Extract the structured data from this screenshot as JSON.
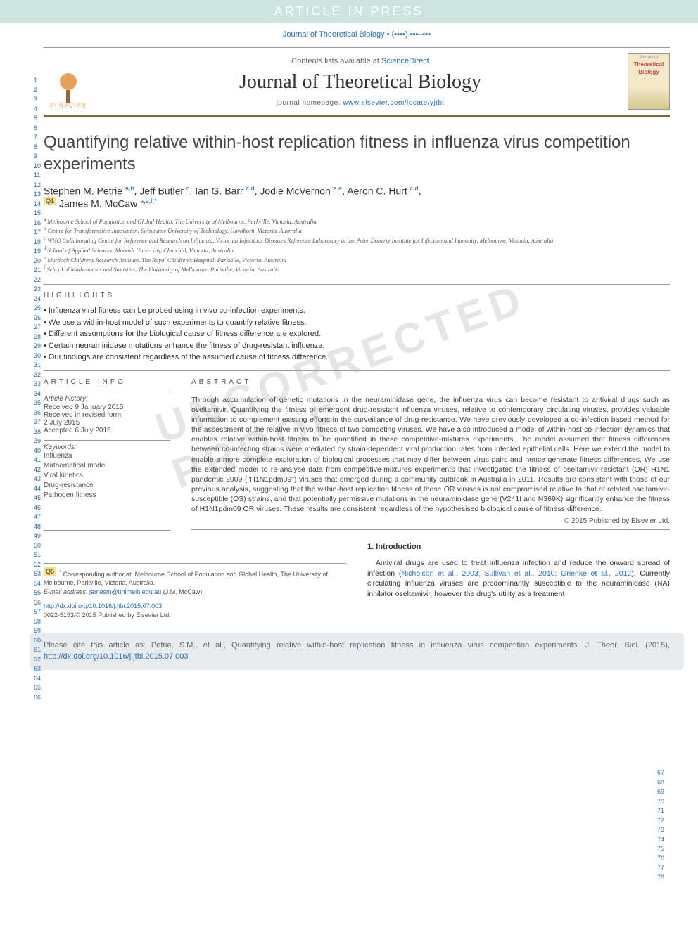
{
  "colors": {
    "banner_bg": "#cce5e0",
    "banner_text": "#ffffff",
    "link": "#2a6fb5",
    "rule_brown": "#7a6a3a",
    "q_badge_bg": "#f7e08a",
    "cite_box_bg": "#e8ecef",
    "watermark": "#e5e5e5"
  },
  "banner": "ARTICLE IN PRESS",
  "journal_ref": "Journal of Theoretical Biology ▪ (▪▪▪▪) ▪▪▪–▪▪▪",
  "masthead": {
    "sciencedirect_prefix": "Contents lists available at ",
    "sciencedirect_link": "ScienceDirect",
    "journal_name": "Journal of Theoretical Biology",
    "homepage_prefix": "journal homepage: ",
    "homepage_url": "www.elsevier.com/locate/yjtbi",
    "elsevier_label": "ELSEVIER",
    "cover_line1": "Journal of",
    "cover_line2": "Theoretical",
    "cover_line3": "Biology"
  },
  "title": "Quantifying relative within-host replication fitness in influenza virus competition experiments",
  "q_badges": {
    "q1": "Q1",
    "q6": "Q6"
  },
  "authors": [
    {
      "name": "Stephen M. Petrie",
      "aff": "a,b"
    },
    {
      "name": "Jeff Butler",
      "aff": "c"
    },
    {
      "name": "Ian G. Barr",
      "aff": "c,d"
    },
    {
      "name": "Jodie McVernon",
      "aff": "a,e"
    },
    {
      "name": "Aeron C. Hurt",
      "aff": "c,d"
    },
    {
      "name": "James M. McCaw",
      "aff": "a,e,f,*"
    }
  ],
  "affiliations": [
    {
      "sup": "a",
      "text": "Melbourne School of Population and Global Health, The University of Melbourne, Parkville, Victoria, Australia"
    },
    {
      "sup": "b",
      "text": "Centre for Transformative Innovation, Swinburne University of Technology, Hawthorn, Victoria, Australia"
    },
    {
      "sup": "c",
      "text": "WHO Collaborating Centre for Reference and Research on Influenza, Victorian Infectious Diseases Reference Laboratory at the Peter Doherty Institute for Infection and Immunity, Melbourne, Victoria, Australia"
    },
    {
      "sup": "d",
      "text": "School of Applied Sciences, Monash University, Churchill, Victoria, Australia"
    },
    {
      "sup": "e",
      "text": "Murdoch Childrens Research Institute, The Royal Children's Hospital, Parkville, Victoria, Australia"
    },
    {
      "sup": "f",
      "text": "School of Mathematics and Statistics, The University of Melbourne, Parkville, Victoria, Australia"
    }
  ],
  "highlights_label": "HIGHLIGHTS",
  "highlights": [
    "Influenza viral fitness can be probed using in vivo co-infection experiments.",
    "We use a within-host model of such experiments to quantify relative fitness.",
    "Different assumptions for the biological cause of fitness difference are explored.",
    "Certain neuraminidase mutations enhance the fitness of drug-resistant influenza.",
    "Our findings are consistent regardless of the assumed cause of fitness difference."
  ],
  "article_info_label": "ARTICLE INFO",
  "abstract_label": "ABSTRACT",
  "article_info": {
    "history_title": "Article history:",
    "received": "Received 9 January 2015",
    "revised1": "Received in revised form",
    "revised2": "2 July 2015",
    "accepted": "Accepted 6 July 2015",
    "keywords_title": "Keywords:",
    "keywords": [
      "Influenza",
      "Mathematical model",
      "Viral kinetics",
      "Drug-resistance",
      "Pathogen fitness"
    ]
  },
  "abstract": "Through accumulation of genetic mutations in the neuraminidase gene, the influenza virus can become resistant to antiviral drugs such as oseltamivir. Quantifying the fitness of emergent drug-resistant influenza viruses, relative to contemporary circulating viruses, provides valuable information to complement existing efforts in the surveillance of drug-resistance. We have previously developed a co-infection based method for the assessment of the relative in vivo fitness of two competing viruses. We have also introduced a model of within-host co-infection dynamics that enables relative within-host fitness to be quantified in these competitive-mixtures experiments. The model assumed that fitness differences between co-infecting strains were mediated by strain-dependent viral production rates from infected epithelial cells. Here we extend the model to enable a more complete exploration of biological processes that may differ between virus pairs and hence generate fitness differences. We use the extended model to re-analyse data from competitive-mixtures experiments that investigated the fitness of oseltamivir-resistant (OR) H1N1 pandemic 2009 (\"H1N1pdm09\") viruses that emerged during a community outbreak in Australia in 2011. Results are consistent with those of our previous analysis, suggesting that the within-host replication fitness of these OR viruses is not compromised relative to that of related oseltamivir-susceptible (OS) strains, and that potentially permissive mutations in the neuraminidase gene (V241I and N369K) significantly enhance the fitness of H1N1pdm09 OR viruses. These results are consistent regardless of the hypothesised biological cause of fitness difference.",
  "copyright": "© 2015 Published by Elsevier Ltd.",
  "intro": {
    "heading": "1.  Introduction",
    "para1_a": "Antiviral drugs are used to treat influenza infection and reduce the onward spread of infection (",
    "cite1": "Nicholson et al., 2003; Sullivan et al., 2010; Grienke et al., 2012",
    "para1_b": "). Currently circulating influenza viruses are predominantly susceptible to the neuraminidase (NA) inhibitor oseltamivir, however the drug's utility as a treatment"
  },
  "corresponding": {
    "star": "*",
    "text": "Corresponding author at: Melbourne School of Population and Global Health, The University of Melbourne, Parkville, Victoria, Australia.",
    "email_label": "E-mail address: ",
    "email": "jamesm@unimelb.edu.au",
    "email_suffix": " (J.M. McCaw)."
  },
  "doi": {
    "url": "http://dx.doi.org/10.1016/j.jtbi.2015.07.003",
    "issn": "0022-5193/© 2015 Published by Elsevier Ltd."
  },
  "cite_box": {
    "prefix": "Please cite this article as: Petrie, S.M., et al., Quantifying relative within-host replication fitness in influenza virus competition experiments. J. Theor. Biol. (2015), ",
    "url": "http://dx.doi.org/10.1016/j.jtbi.2015.07.003"
  },
  "watermark": "UNCORRECTED PROOF",
  "line_numbers": {
    "left_start": 1,
    "left_end": 66,
    "right_start": 67,
    "right_end": 78
  }
}
